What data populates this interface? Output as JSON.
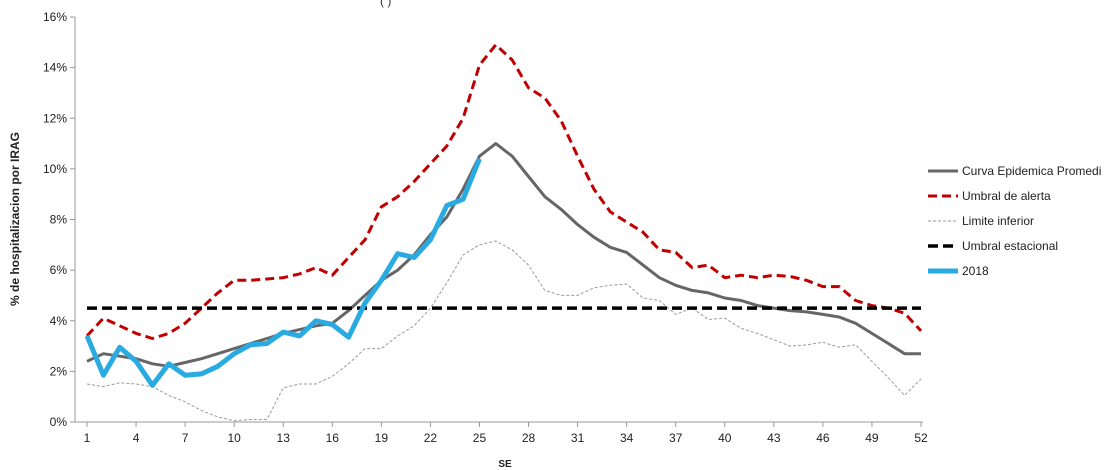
{
  "chart_data": {
    "type": "line",
    "xlabel": "SE",
    "ylabel": "% de hospitalizacion por IRAG",
    "xlim": [
      1,
      52
    ],
    "ylim": [
      0,
      16
    ],
    "x_ticks": [
      1,
      4,
      7,
      10,
      13,
      16,
      19,
      22,
      25,
      28,
      31,
      34,
      37,
      40,
      43,
      46,
      49,
      52
    ],
    "y_ticks": [
      0,
      2,
      4,
      6,
      8,
      10,
      12,
      14,
      16
    ],
    "y_tick_labels": [
      "0%",
      "2%",
      "4%",
      "6%",
      "8%",
      "10%",
      "12%",
      "14%",
      "16%"
    ],
    "grid": false,
    "legend_position": "right",
    "series": [
      {
        "name": "Curva Epidemica Promedi",
        "color": "#666666",
        "style": "solid",
        "x": [
          1,
          2,
          3,
          4,
          5,
          6,
          7,
          8,
          9,
          10,
          11,
          12,
          13,
          14,
          15,
          16,
          17,
          18,
          19,
          20,
          21,
          22,
          23,
          24,
          25,
          26,
          27,
          28,
          29,
          30,
          31,
          32,
          33,
          34,
          35,
          36,
          37,
          38,
          39,
          40,
          41,
          42,
          43,
          44,
          45,
          46,
          47,
          48,
          49,
          50,
          51,
          52
        ],
        "values": [
          2.4,
          2.7,
          2.6,
          2.5,
          2.3,
          2.2,
          2.35,
          2.5,
          2.7,
          2.9,
          3.1,
          3.3,
          3.5,
          3.65,
          3.8,
          3.9,
          4.4,
          5.0,
          5.6,
          6.0,
          6.6,
          7.4,
          8.1,
          9.2,
          10.5,
          11.0,
          10.5,
          9.7,
          8.9,
          8.4,
          7.8,
          7.3,
          6.9,
          6.7,
          6.2,
          5.7,
          5.4,
          5.2,
          5.1,
          4.9,
          4.8,
          4.6,
          4.5,
          4.4,
          4.35,
          4.25,
          4.15,
          3.9,
          3.5,
          3.1,
          2.7,
          2.7
        ]
      },
      {
        "name": "Umbral de alerta",
        "color": "#c00000",
        "style": "dashed",
        "x": [
          1,
          2,
          3,
          4,
          5,
          6,
          7,
          8,
          9,
          10,
          11,
          12,
          13,
          14,
          15,
          16,
          17,
          18,
          19,
          20,
          21,
          22,
          23,
          24,
          25,
          26,
          27,
          28,
          29,
          30,
          31,
          32,
          33,
          34,
          35,
          36,
          37,
          38,
          39,
          40,
          41,
          42,
          43,
          44,
          45,
          46,
          47,
          48,
          49,
          50,
          51,
          52
        ],
        "values": [
          3.4,
          4.1,
          3.8,
          3.5,
          3.3,
          3.5,
          3.9,
          4.5,
          5.1,
          5.6,
          5.6,
          5.65,
          5.7,
          5.85,
          6.1,
          5.8,
          6.5,
          7.2,
          8.5,
          8.9,
          9.5,
          10.2,
          10.9,
          12.0,
          14.1,
          14.9,
          14.3,
          13.2,
          12.8,
          11.9,
          10.5,
          9.2,
          8.3,
          7.9,
          7.5,
          6.8,
          6.7,
          6.1,
          6.2,
          5.7,
          5.8,
          5.7,
          5.8,
          5.75,
          5.6,
          5.35,
          5.35,
          4.8,
          4.6,
          4.5,
          4.3,
          3.6
        ]
      },
      {
        "name": "Limite inferior",
        "color": "#9a9a9a",
        "style": "dotted",
        "x": [
          1,
          2,
          3,
          4,
          5,
          6,
          7,
          8,
          9,
          10,
          11,
          12,
          13,
          14,
          15,
          16,
          17,
          18,
          19,
          20,
          21,
          22,
          23,
          24,
          25,
          26,
          27,
          28,
          29,
          30,
          31,
          32,
          33,
          34,
          35,
          36,
          37,
          38,
          39,
          40,
          41,
          42,
          43,
          44,
          45,
          46,
          47,
          48,
          49,
          50,
          51,
          52
        ],
        "values": [
          1.5,
          1.4,
          1.55,
          1.5,
          1.4,
          1.05,
          0.8,
          0.45,
          0.2,
          0.05,
          0.1,
          0.1,
          1.35,
          1.5,
          1.5,
          1.8,
          2.3,
          2.9,
          2.9,
          3.4,
          3.8,
          4.5,
          5.5,
          6.6,
          7.0,
          7.15,
          6.8,
          6.2,
          5.2,
          5.0,
          5.0,
          5.3,
          5.4,
          5.45,
          4.9,
          4.8,
          4.25,
          4.5,
          4.05,
          4.1,
          3.7,
          3.5,
          3.25,
          3.0,
          3.05,
          3.15,
          2.95,
          3.05,
          2.4,
          1.75,
          1.05,
          1.7
        ]
      },
      {
        "name": "Umbral estacional",
        "color": "#000000",
        "style": "dashed-thick",
        "x": [
          1,
          52
        ],
        "values": [
          4.5,
          4.5
        ]
      },
      {
        "name": "2018",
        "color": "#29abe2",
        "style": "solid-thick",
        "x": [
          1,
          2,
          3,
          4,
          5,
          6,
          7,
          8,
          9,
          10,
          11,
          12,
          13,
          14,
          15,
          16,
          17,
          18,
          19,
          20,
          21,
          22,
          23,
          24,
          25
        ],
        "values": [
          3.4,
          1.85,
          2.95,
          2.4,
          1.45,
          2.3,
          1.85,
          1.9,
          2.2,
          2.7,
          3.05,
          3.1,
          3.55,
          3.4,
          4.0,
          3.85,
          3.35,
          4.7,
          5.6,
          6.65,
          6.5,
          7.2,
          8.55,
          8.8,
          10.4
        ]
      }
    ]
  }
}
